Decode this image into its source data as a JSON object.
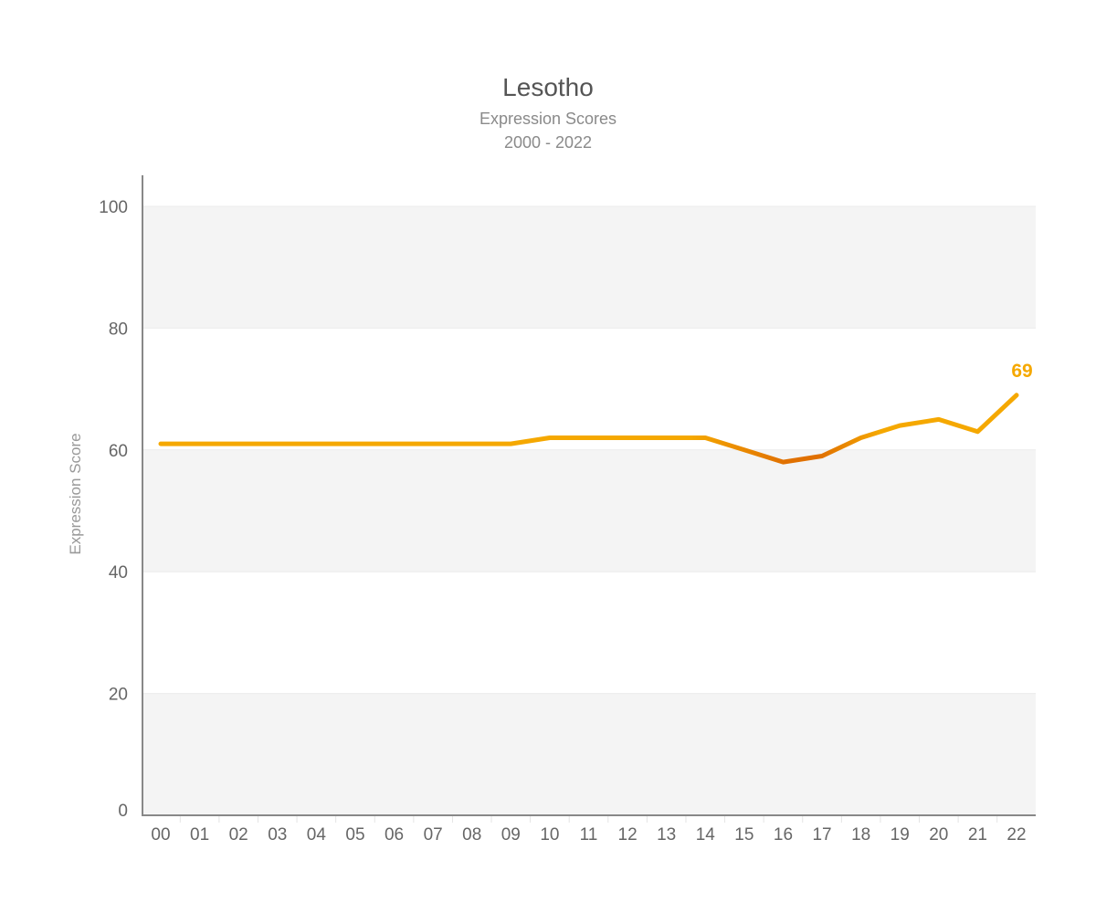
{
  "chart_data": {
    "type": "line",
    "title": "Lesotho",
    "subtitles": [
      "Expression Scores",
      "2000 - 2022"
    ],
    "ylabel": "Expression Score",
    "xlabel": "",
    "ylim": [
      0,
      100
    ],
    "yticks": [
      0,
      20,
      40,
      60,
      80,
      100
    ],
    "categories": [
      "00",
      "01",
      "02",
      "03",
      "04",
      "05",
      "06",
      "07",
      "08",
      "09",
      "10",
      "11",
      "12",
      "13",
      "14",
      "15",
      "16",
      "17",
      "18",
      "19",
      "20",
      "21",
      "22"
    ],
    "series": [
      {
        "values": [
          61,
          61,
          61,
          61,
          61,
          61,
          61,
          61,
          61,
          61,
          62,
          62,
          62,
          62,
          62,
          60,
          58,
          59,
          62,
          64,
          65,
          63,
          69
        ]
      }
    ],
    "end_label": "69",
    "grid": "alternating-bands",
    "colors": {
      "line": "#F5A800",
      "line_low": "#E07000",
      "band": "#f4f4f4",
      "axis": "#888888",
      "end_label": "#F5A800"
    }
  }
}
